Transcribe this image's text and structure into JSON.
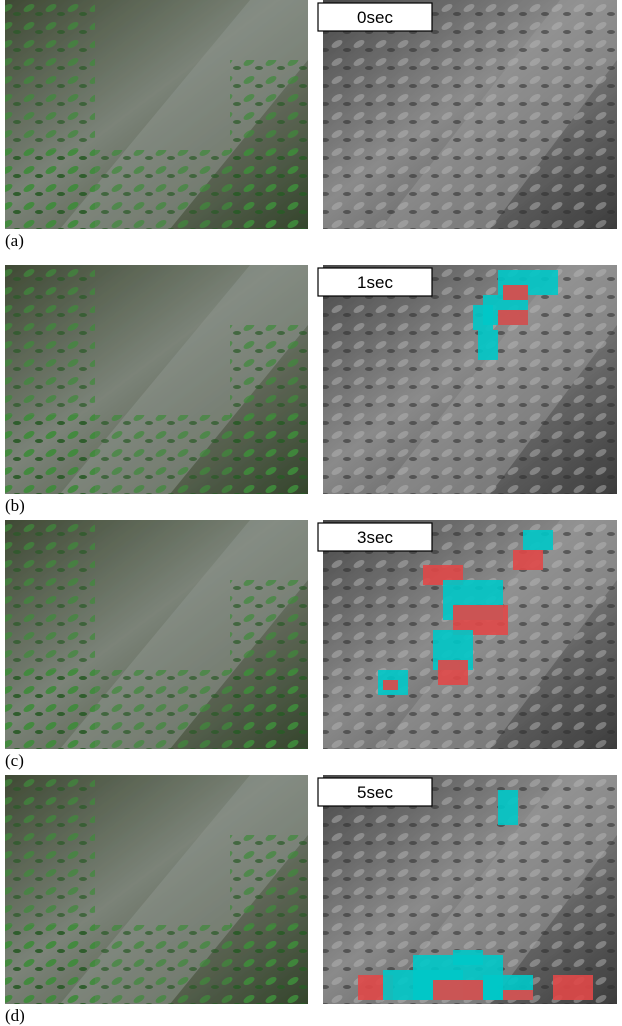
{
  "panels": [
    {
      "label": "(a)",
      "time": "0sec"
    },
    {
      "label": "(b)",
      "time": "1sec"
    },
    {
      "label": "(c)",
      "time": "3sec"
    },
    {
      "label": "(d)",
      "time": "5sec"
    }
  ]
}
